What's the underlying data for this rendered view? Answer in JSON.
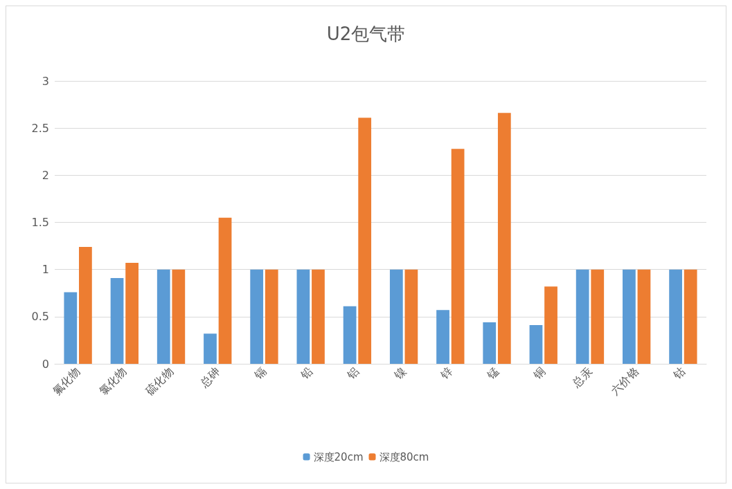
{
  "chart_data": {
    "type": "bar",
    "title": "U2包气带",
    "categories": [
      "氟化物",
      "氯化物",
      "硫化物",
      "总砷",
      "镉",
      "铅",
      "铝",
      "镍",
      "锌",
      "锰",
      "铜",
      "总汞",
      "六价铬",
      "钴"
    ],
    "series": [
      {
        "name": "深度20cm",
        "color": "#5b9bd5",
        "values": [
          0.76,
          0.91,
          1,
          0.32,
          1,
          1,
          0.61,
          1,
          0.57,
          0.44,
          0.41,
          1,
          1,
          1
        ]
      },
      {
        "name": "深度80cm",
        "color": "#ed7d31",
        "values": [
          1.24,
          1.07,
          1,
          1.55,
          1,
          1,
          2.61,
          1,
          2.28,
          2.66,
          0.82,
          1,
          1,
          1
        ]
      }
    ],
    "ylim": [
      0,
      3
    ],
    "yticks": [
      0,
      0.5,
      1,
      1.5,
      2,
      2.5,
      3
    ],
    "grid": "y",
    "legend": "bottom"
  }
}
